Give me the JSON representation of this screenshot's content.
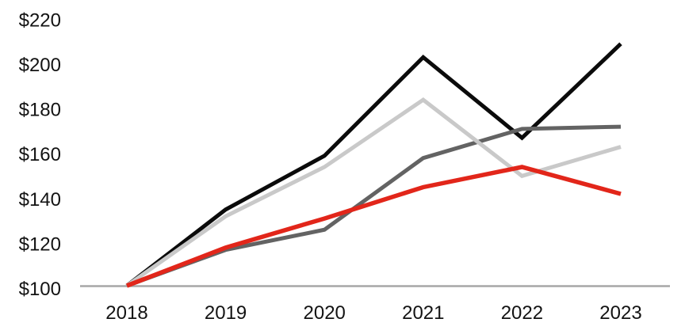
{
  "chart_data": {
    "type": "line",
    "title": "",
    "xlabel": "",
    "ylabel": "",
    "x_categories": [
      "2018",
      "2019",
      "2020",
      "2021",
      "2022",
      "2023"
    ],
    "yticks": [
      100,
      120,
      140,
      160,
      180,
      200,
      220
    ],
    "ytick_labels": [
      "$100",
      "$120",
      "$140",
      "$160",
      "$180",
      "$200",
      "$220"
    ],
    "ytick_prefix": "$",
    "ylim": [
      100,
      220
    ],
    "grid": false,
    "legend_position": "none",
    "baseline_axis": "y=100",
    "series": [
      {
        "name": "black",
        "color": "#0b0b0b",
        "values": [
          100,
          134,
          158,
          202,
          166,
          208
        ]
      },
      {
        "name": "dark-gray",
        "color": "#636363",
        "values": [
          100,
          116,
          125,
          157,
          170,
          171
        ]
      },
      {
        "name": "light-gray",
        "color": "#c9c9c9",
        "values": [
          100,
          131,
          153,
          183,
          149,
          162
        ]
      },
      {
        "name": "red",
        "color": "#e2261a",
        "values": [
          100,
          117,
          130,
          144,
          153,
          141
        ]
      }
    ],
    "colors": {
      "baseline": "#a7a7a7",
      "label_text": "#131313",
      "background": "#ffffff"
    }
  }
}
